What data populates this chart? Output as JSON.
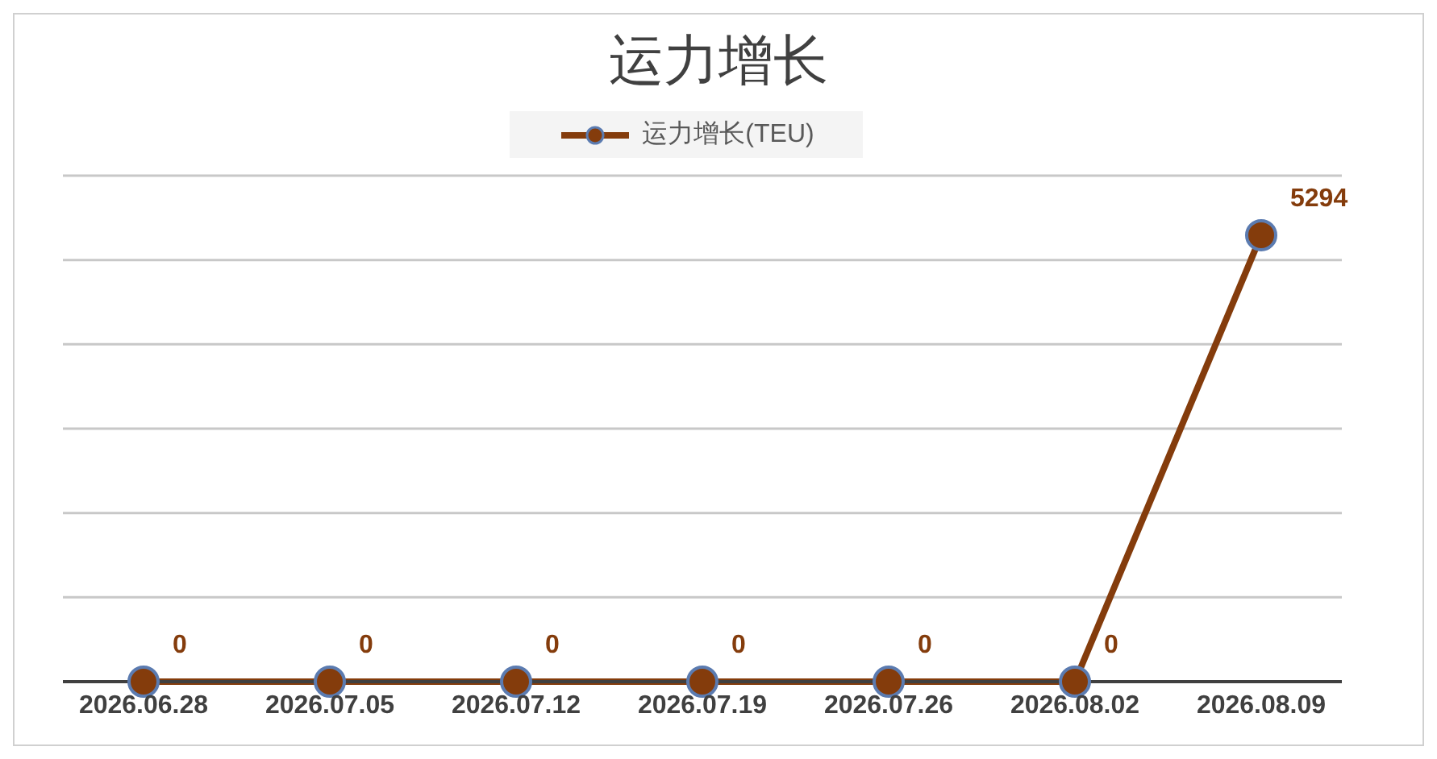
{
  "chart_data": {
    "type": "line",
    "title": "运力增长",
    "categories": [
      "2026.06.28",
      "2026.07.05",
      "2026.07.12",
      "2026.07.19",
      "2026.07.26",
      "2026.08.02",
      "2026.08.09"
    ],
    "series": [
      {
        "name": "运力增长(TEU)",
        "color": "#843c0c",
        "values": [
          0,
          0,
          0,
          0,
          0,
          0,
          5294
        ]
      }
    ],
    "ylim": [
      0,
      6000
    ],
    "yticks": [
      {
        "value": 0,
        "label": null
      },
      {
        "value": 1000,
        "label": null
      },
      {
        "value": 2000,
        "label": null
      },
      {
        "value": 3000,
        "label": null
      },
      {
        "value": 4000,
        "label": null
      },
      {
        "value": 5000,
        "label": null
      },
      {
        "value": 6000,
        "label": null
      }
    ],
    "grid": "y",
    "legend": "top",
    "tick_labels": "x",
    "marker": "circle",
    "line_style": "solid",
    "data_labels": true
  }
}
